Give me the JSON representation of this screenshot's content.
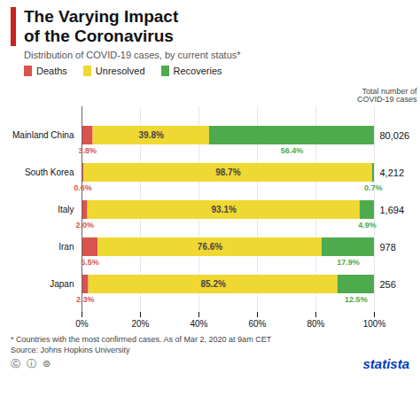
{
  "chart_data": {
    "type": "bar",
    "orientation": "horizontal",
    "stacked": true,
    "title": "The Varying Impact\nof the Coronavirus",
    "subtitle": "Distribution of COVID-19 cases, by current status*",
    "categories": [
      "Japan",
      "Iran",
      "Italy",
      "South Korea",
      "Mainland China"
    ],
    "series": [
      {
        "name": "Deaths",
        "color": "#d9534f",
        "values": [
          2.3,
          5.5,
          2.0,
          0.6,
          3.8
        ],
        "value_labels": [
          "2.3%",
          "5.5%",
          "2.0%",
          "0.6%",
          "3.8%"
        ]
      },
      {
        "name": "Unresolved",
        "color": "#f0d832",
        "values": [
          85.2,
          76.6,
          93.1,
          98.7,
          39.8
        ],
        "value_labels": [
          "85.2%",
          "76.6%",
          "93.1%",
          "98.7%",
          "39.8%"
        ]
      },
      {
        "name": "Recoveries",
        "color": "#4dab4d",
        "values": [
          12.5,
          17.9,
          4.9,
          0.7,
          56.4
        ],
        "value_labels": [
          "12.5%",
          "17.9%",
          "4.9%",
          "0.7%",
          "56.4%"
        ]
      }
    ],
    "xlim": [
      0,
      100
    ],
    "xticks": [
      {
        "value": 0,
        "label": "0%"
      },
      {
        "value": 20,
        "label": "20%"
      },
      {
        "value": 40,
        "label": "40%"
      },
      {
        "value": 60,
        "label": "60%"
      },
      {
        "value": 80,
        "label": "80%"
      },
      {
        "value": 100,
        "label": "100%"
      }
    ],
    "grid": true,
    "legend": "top",
    "data_labels": true,
    "totals": [
      "256",
      "978",
      "1,694",
      "4,212",
      "80,026"
    ],
    "totals_title": "Total number of\nCOVID-19 cases",
    "footnotes": [
      "* Countries with the most confirmed cases. As of Mar 2, 2020 at 9am CET",
      "Source: Johns Hopkins University"
    ],
    "annotations": [
      "Ⓒ  ⓘ  ⊜",
      "statista"
    ]
  }
}
